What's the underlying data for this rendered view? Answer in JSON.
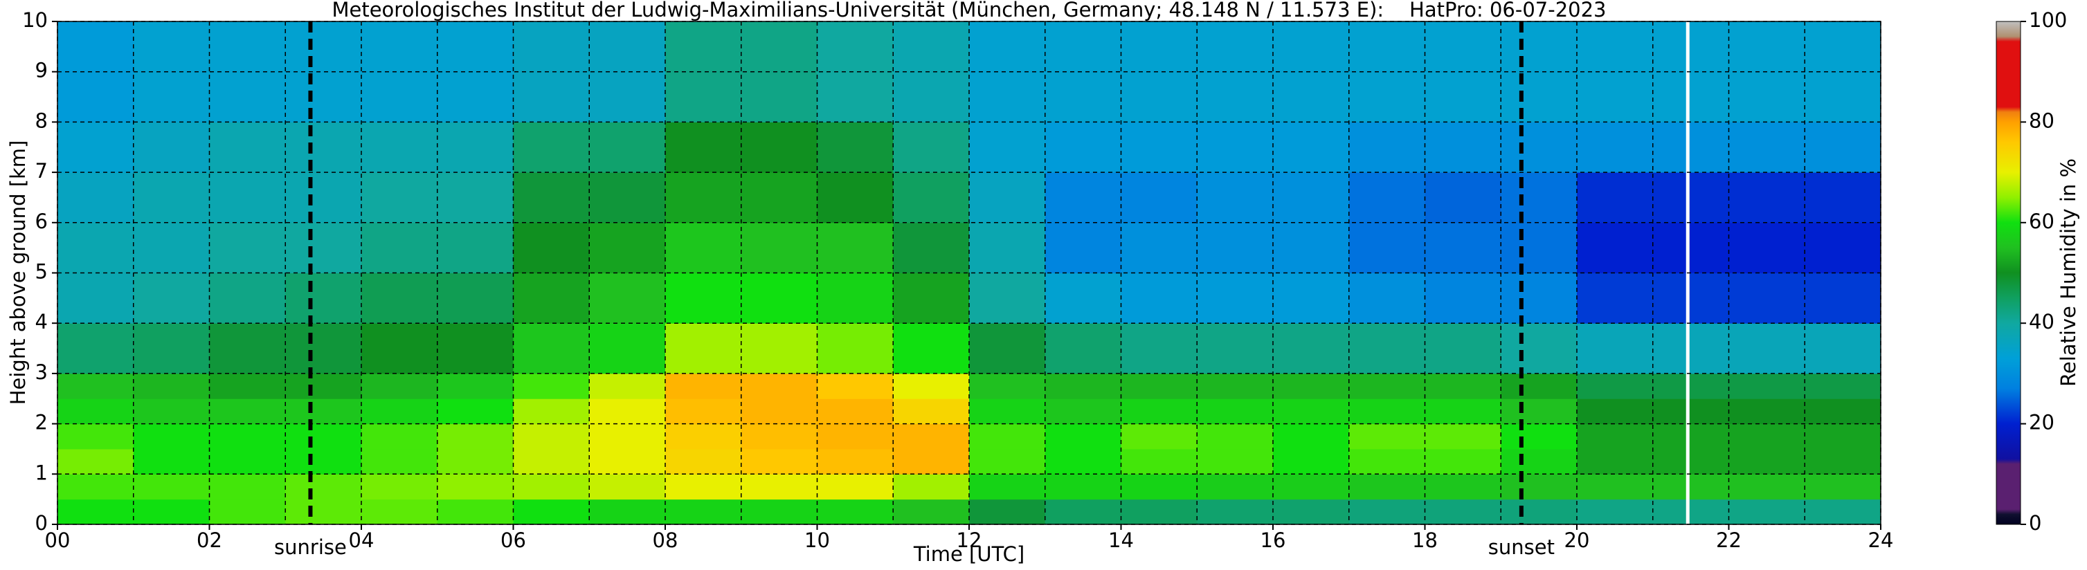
{
  "chart_data": {
    "type": "heatmap",
    "title": "Meteorologisches Institut der Ludwig-Maximilians-Universität (München, Germany; 48.148 N / 11.573 E):    HatPro: 06-07-2023",
    "xlabel": "Time [UTC]",
    "ylabel": "Height above ground [km]",
    "colorbar_label": "Relative Humidity in %",
    "xlim": [
      0,
      24
    ],
    "ylim": [
      0,
      10
    ],
    "clim": [
      0,
      100
    ],
    "xticks": [
      {
        "value": 0,
        "label": "00"
      },
      {
        "value": 2,
        "label": "02"
      },
      {
        "value": 4,
        "label": "04"
      },
      {
        "value": 6,
        "label": "06"
      },
      {
        "value": 8,
        "label": "08"
      },
      {
        "value": 10,
        "label": "10"
      },
      {
        "value": 12,
        "label": "12"
      },
      {
        "value": 14,
        "label": "14"
      },
      {
        "value": 16,
        "label": "16"
      },
      {
        "value": 18,
        "label": "18"
      },
      {
        "value": 20,
        "label": "20"
      },
      {
        "value": 22,
        "label": "22"
      },
      {
        "value": 24,
        "label": "24"
      }
    ],
    "x_minor_grid": [
      1,
      3,
      5,
      7,
      9,
      11,
      13,
      15,
      17,
      19,
      21,
      23
    ],
    "yticks": [
      0,
      1,
      2,
      3,
      4,
      5,
      6,
      7,
      8,
      9,
      10
    ],
    "cticks": [
      0,
      20,
      40,
      60,
      80,
      100
    ],
    "grid": true,
    "x": [
      0,
      1,
      2,
      3,
      4,
      5,
      6,
      7,
      8,
      9,
      10,
      11,
      12,
      13,
      14,
      15,
      16,
      17,
      18,
      19,
      20,
      21,
      22,
      23,
      24
    ],
    "y": [
      0,
      0.5,
      1,
      1.5,
      2,
      2.5,
      3,
      4,
      5,
      6,
      7,
      8,
      10
    ],
    "z": [
      [
        60,
        60,
        62,
        63,
        63,
        62,
        60,
        58,
        58,
        58,
        58,
        55,
        48,
        45,
        45,
        44,
        44,
        43,
        43,
        43,
        42,
        42,
        42,
        42
      ],
      [
        62,
        62,
        62,
        63,
        64,
        65,
        66,
        68,
        70,
        70,
        70,
        66,
        58,
        58,
        58,
        57,
        57,
        56,
        56,
        55,
        55,
        55,
        55,
        55
      ],
      [
        64,
        60,
        60,
        60,
        62,
        64,
        68,
        70,
        74,
        76,
        77,
        78,
        62,
        60,
        62,
        62,
        60,
        62,
        62,
        58,
        52,
        52,
        52,
        52
      ],
      [
        62,
        60,
        60,
        60,
        62,
        64,
        68,
        70,
        75,
        77,
        78,
        78,
        62,
        60,
        63,
        62,
        60,
        63,
        63,
        60,
        52,
        52,
        52,
        52
      ],
      [
        58,
        56,
        56,
        56,
        58,
        60,
        66,
        70,
        77,
        78,
        78,
        74,
        58,
        56,
        58,
        58,
        58,
        58,
        58,
        55,
        50,
        50,
        50,
        50
      ],
      [
        55,
        54,
        52,
        52,
        54,
        56,
        62,
        68,
        78,
        78,
        76,
        70,
        55,
        54,
        54,
        54,
        54,
        54,
        54,
        52,
        47,
        47,
        47,
        47
      ],
      [
        44,
        45,
        48,
        48,
        50,
        50,
        56,
        58,
        66,
        66,
        64,
        60,
        48,
        44,
        42,
        42,
        42,
        42,
        42,
        40,
        37,
        37,
        37,
        37
      ],
      [
        38,
        40,
        42,
        44,
        46,
        46,
        52,
        55,
        60,
        60,
        58,
        52,
        40,
        34,
        32,
        32,
        32,
        30,
        28,
        28,
        22,
        22,
        22,
        22
      ],
      [
        38,
        38,
        40,
        40,
        42,
        42,
        50,
        52,
        56,
        55,
        55,
        48,
        38,
        28,
        30,
        30,
        30,
        26,
        26,
        26,
        20,
        20,
        20,
        20
      ],
      [
        36,
        38,
        38,
        38,
        40,
        40,
        48,
        48,
        52,
        52,
        50,
        45,
        36,
        28,
        28,
        30,
        30,
        26,
        25,
        26,
        21,
        21,
        21,
        21
      ],
      [
        34,
        36,
        38,
        38,
        38,
        38,
        44,
        44,
        50,
        50,
        48,
        42,
        34,
        32,
        32,
        32,
        32,
        30,
        30,
        30,
        30,
        30,
        30,
        30
      ],
      [
        32,
        34,
        34,
        34,
        34,
        34,
        36,
        36,
        42,
        42,
        40,
        38,
        34,
        34,
        34,
        34,
        34,
        34,
        34,
        34,
        34,
        34,
        34,
        34
      ]
    ],
    "colorscale": [
      [
        0,
        "#000020"
      ],
      [
        2,
        "#101030"
      ],
      [
        3,
        "#5a2070"
      ],
      [
        12,
        "#5a2070"
      ],
      [
        13,
        "#1010a0"
      ],
      [
        20,
        "#0020d0"
      ],
      [
        27,
        "#0080e0"
      ],
      [
        33,
        "#00a0d8"
      ],
      [
        40,
        "#10a8a0"
      ],
      [
        45,
        "#10a060"
      ],
      [
        50,
        "#109020"
      ],
      [
        55,
        "#20c020"
      ],
      [
        60,
        "#10e010"
      ],
      [
        65,
        "#90f000"
      ],
      [
        70,
        "#e8f000"
      ],
      [
        76,
        "#ffc800"
      ],
      [
        80,
        "#ffa000"
      ],
      [
        82,
        "#f08010"
      ],
      [
        83,
        "#e01010"
      ],
      [
        96,
        "#e01010"
      ],
      [
        97,
        "#b09070"
      ],
      [
        100,
        "#c0c0c0"
      ]
    ],
    "vlines": [
      {
        "x": 3.33,
        "label": "sunrise"
      },
      {
        "x": 19.27,
        "label": "sunset"
      }
    ],
    "missing_x": 21.46
  }
}
